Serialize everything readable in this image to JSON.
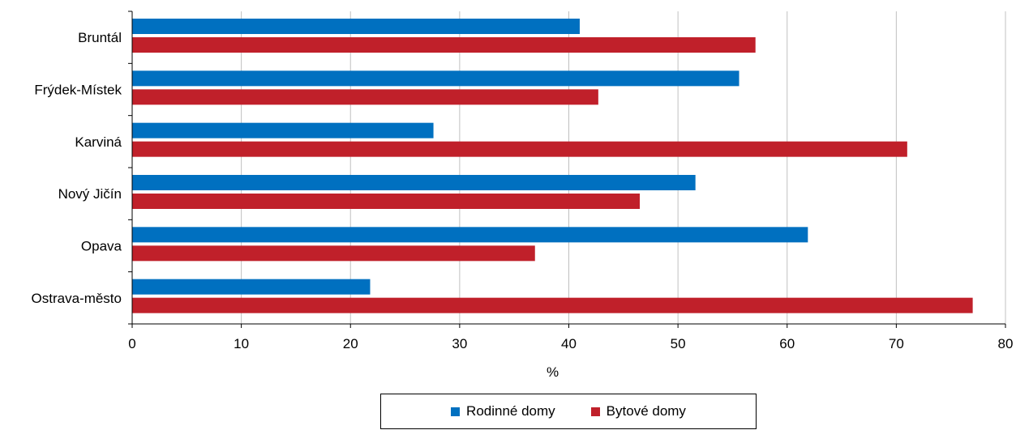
{
  "chart_data": {
    "type": "bar",
    "orientation": "horizontal",
    "categories": [
      "Bruntál",
      "Frýdek-Místek",
      "Karviná",
      "Nový Jičín",
      "Opava",
      "Ostrava-město"
    ],
    "series": [
      {
        "name": "Rodinné domy",
        "color": "#0070c0",
        "values": [
          41.0,
          55.6,
          27.6,
          51.6,
          61.9,
          21.8
        ]
      },
      {
        "name": "Bytové domy",
        "color": "#c0202a",
        "values": [
          57.1,
          42.7,
          71.0,
          46.5,
          36.9,
          77.0
        ]
      }
    ],
    "xlabel": "%",
    "ylabel": "",
    "xlim": [
      0,
      80
    ],
    "xticks": [
      "0",
      "10",
      "20",
      "30",
      "40",
      "50",
      "60",
      "70",
      "80"
    ],
    "grid": "vertical",
    "legend_position": "bottom"
  }
}
